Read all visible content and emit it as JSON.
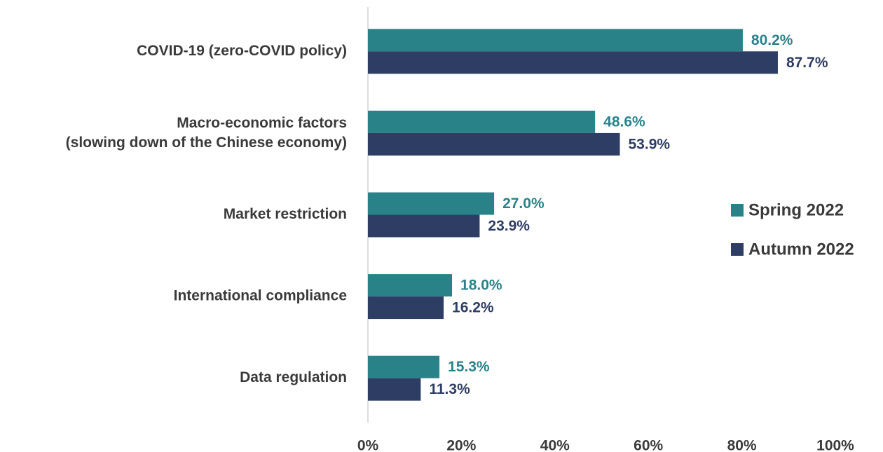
{
  "chart_data": {
    "type": "barh",
    "categories": [
      "COVID-19 (zero-COVID policy)",
      "Macro-economic factors\n(slowing down of the Chinese economy)",
      "Market restriction",
      "International compliance",
      "Data regulation"
    ],
    "series": [
      {
        "name": "Spring 2022",
        "color": "#2a8289",
        "values": [
          80.2,
          48.6,
          27.0,
          18.0,
          15.3
        ],
        "value_labels": [
          "80.2%",
          "48.6%",
          "27.0%",
          "18.0%",
          "15.3%"
        ]
      },
      {
        "name": "Autumn 2022",
        "color": "#2e3d63",
        "values": [
          87.7,
          53.9,
          23.9,
          16.2,
          11.3
        ],
        "value_labels": [
          "87.7%",
          "53.9%",
          "23.9%",
          "16.2%",
          "11.3%"
        ]
      }
    ],
    "xlim": [
      0,
      100
    ],
    "xticks": [
      {
        "value": 0,
        "label": "0%"
      },
      {
        "value": 20,
        "label": "20%"
      },
      {
        "value": 40,
        "label": "40%"
      },
      {
        "value": 60,
        "label": "60%"
      },
      {
        "value": 80,
        "label": "80%"
      },
      {
        "value": 100,
        "label": "100%"
      }
    ],
    "legend": "right",
    "grid": false
  }
}
